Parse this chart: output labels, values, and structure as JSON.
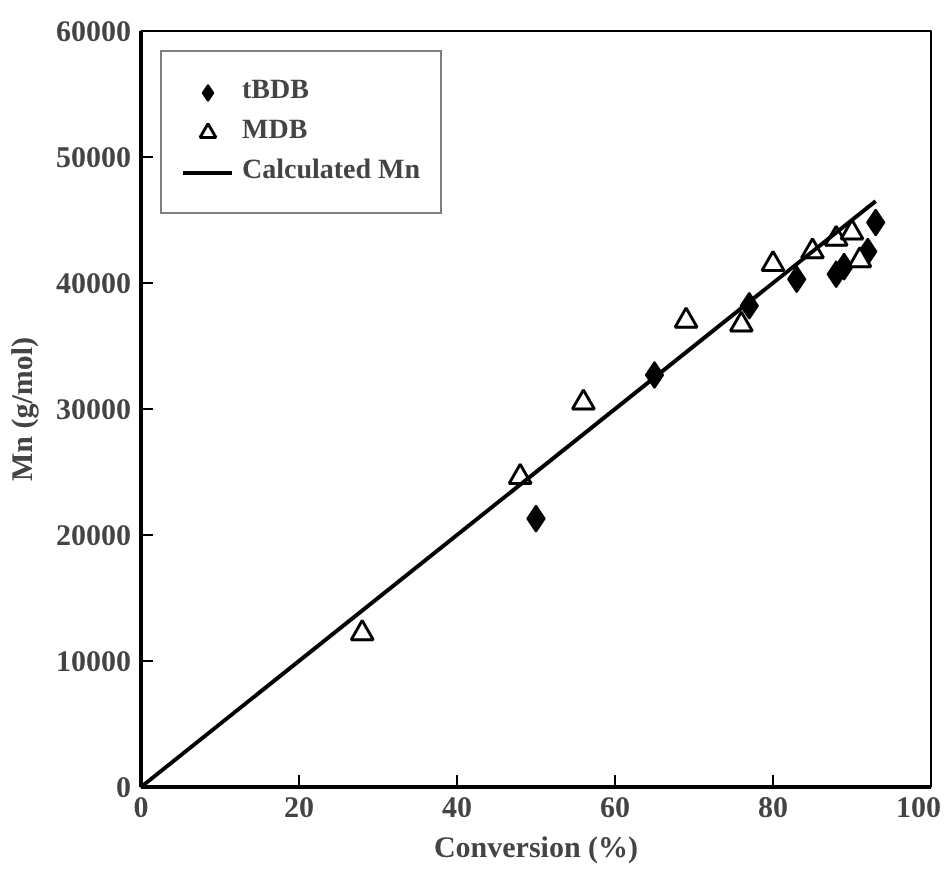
{
  "chart_data": {
    "type": "scatter",
    "xlabel": "Conversion (%)",
    "ylabel": "Mn (g/mol)",
    "xlim": [
      0,
      100
    ],
    "ylim": [
      0,
      60000
    ],
    "xticks": [
      0,
      20,
      40,
      60,
      80,
      100
    ],
    "yticks": [
      0,
      10000,
      20000,
      30000,
      40000,
      50000,
      60000
    ],
    "grid": false,
    "legend": "top left",
    "series": [
      {
        "name": "tBDB",
        "marker": "diamond",
        "color": "#000000",
        "x": [
          50,
          65,
          77,
          83,
          88,
          89,
          92,
          93
        ],
        "values": [
          21300,
          32700,
          38200,
          40300,
          40700,
          41300,
          42500,
          44800
        ]
      },
      {
        "name": "MDB",
        "marker": "triangle",
        "color": "#000000",
        "x": [
          28,
          48,
          56,
          69,
          76,
          80,
          85,
          88,
          90,
          91
        ],
        "values": [
          12200,
          24600,
          30500,
          37000,
          36700,
          41500,
          42500,
          43500,
          44000,
          41800
        ]
      },
      {
        "name": "Calculated Mn",
        "type": "line",
        "marker": "none",
        "line_style": "solid",
        "color": "#000000",
        "x": [
          0,
          93
        ],
        "values": [
          0,
          46500
        ]
      }
    ]
  }
}
